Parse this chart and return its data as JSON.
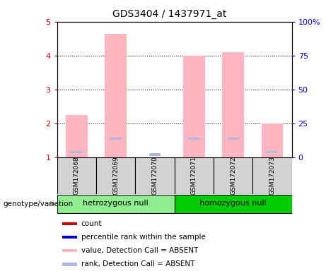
{
  "title": "GDS3404 / 1437971_at",
  "samples": [
    "GSM172068",
    "GSM172069",
    "GSM172070",
    "GSM172071",
    "GSM172072",
    "GSM172073"
  ],
  "groups": [
    {
      "name": "hetrozygous null",
      "color": "#90ee90",
      "samples": [
        0,
        1,
        2
      ]
    },
    {
      "name": "homozygous null",
      "color": "#00cc00",
      "samples": [
        3,
        4,
        5
      ]
    }
  ],
  "bar_values": [
    2.25,
    4.65,
    1.0,
    4.0,
    4.1,
    2.0
  ],
  "rank_values": [
    1.15,
    1.55,
    1.08,
    1.55,
    1.55,
    1.15
  ],
  "bar_color_absent": "#ffb6c1",
  "rank_color_absent": "#b0b8e0",
  "ylim_left": [
    1,
    5
  ],
  "ylim_right": [
    0,
    100
  ],
  "yticks_left": [
    1,
    2,
    3,
    4,
    5
  ],
  "yticks_right": [
    0,
    25,
    50,
    75,
    100
  ],
  "ytick_labels_right": [
    "0",
    "25",
    "50",
    "75",
    "100%"
  ],
  "genotype_label": "genotype/variation",
  "legend_items": [
    {
      "label": "count",
      "color": "#cc0000"
    },
    {
      "label": "percentile rank within the sample",
      "color": "#0000cc"
    },
    {
      "label": "value, Detection Call = ABSENT",
      "color": "#ffb6c1"
    },
    {
      "label": "rank, Detection Call = ABSENT",
      "color": "#b0b8e0"
    }
  ],
  "bar_width": 0.55,
  "background_color": "#ffffff",
  "tick_color_left": "#cc0000",
  "tick_color_right": "#0000cc",
  "sample_box_color": "#d3d3d3",
  "sample_box_edge": "#000000"
}
